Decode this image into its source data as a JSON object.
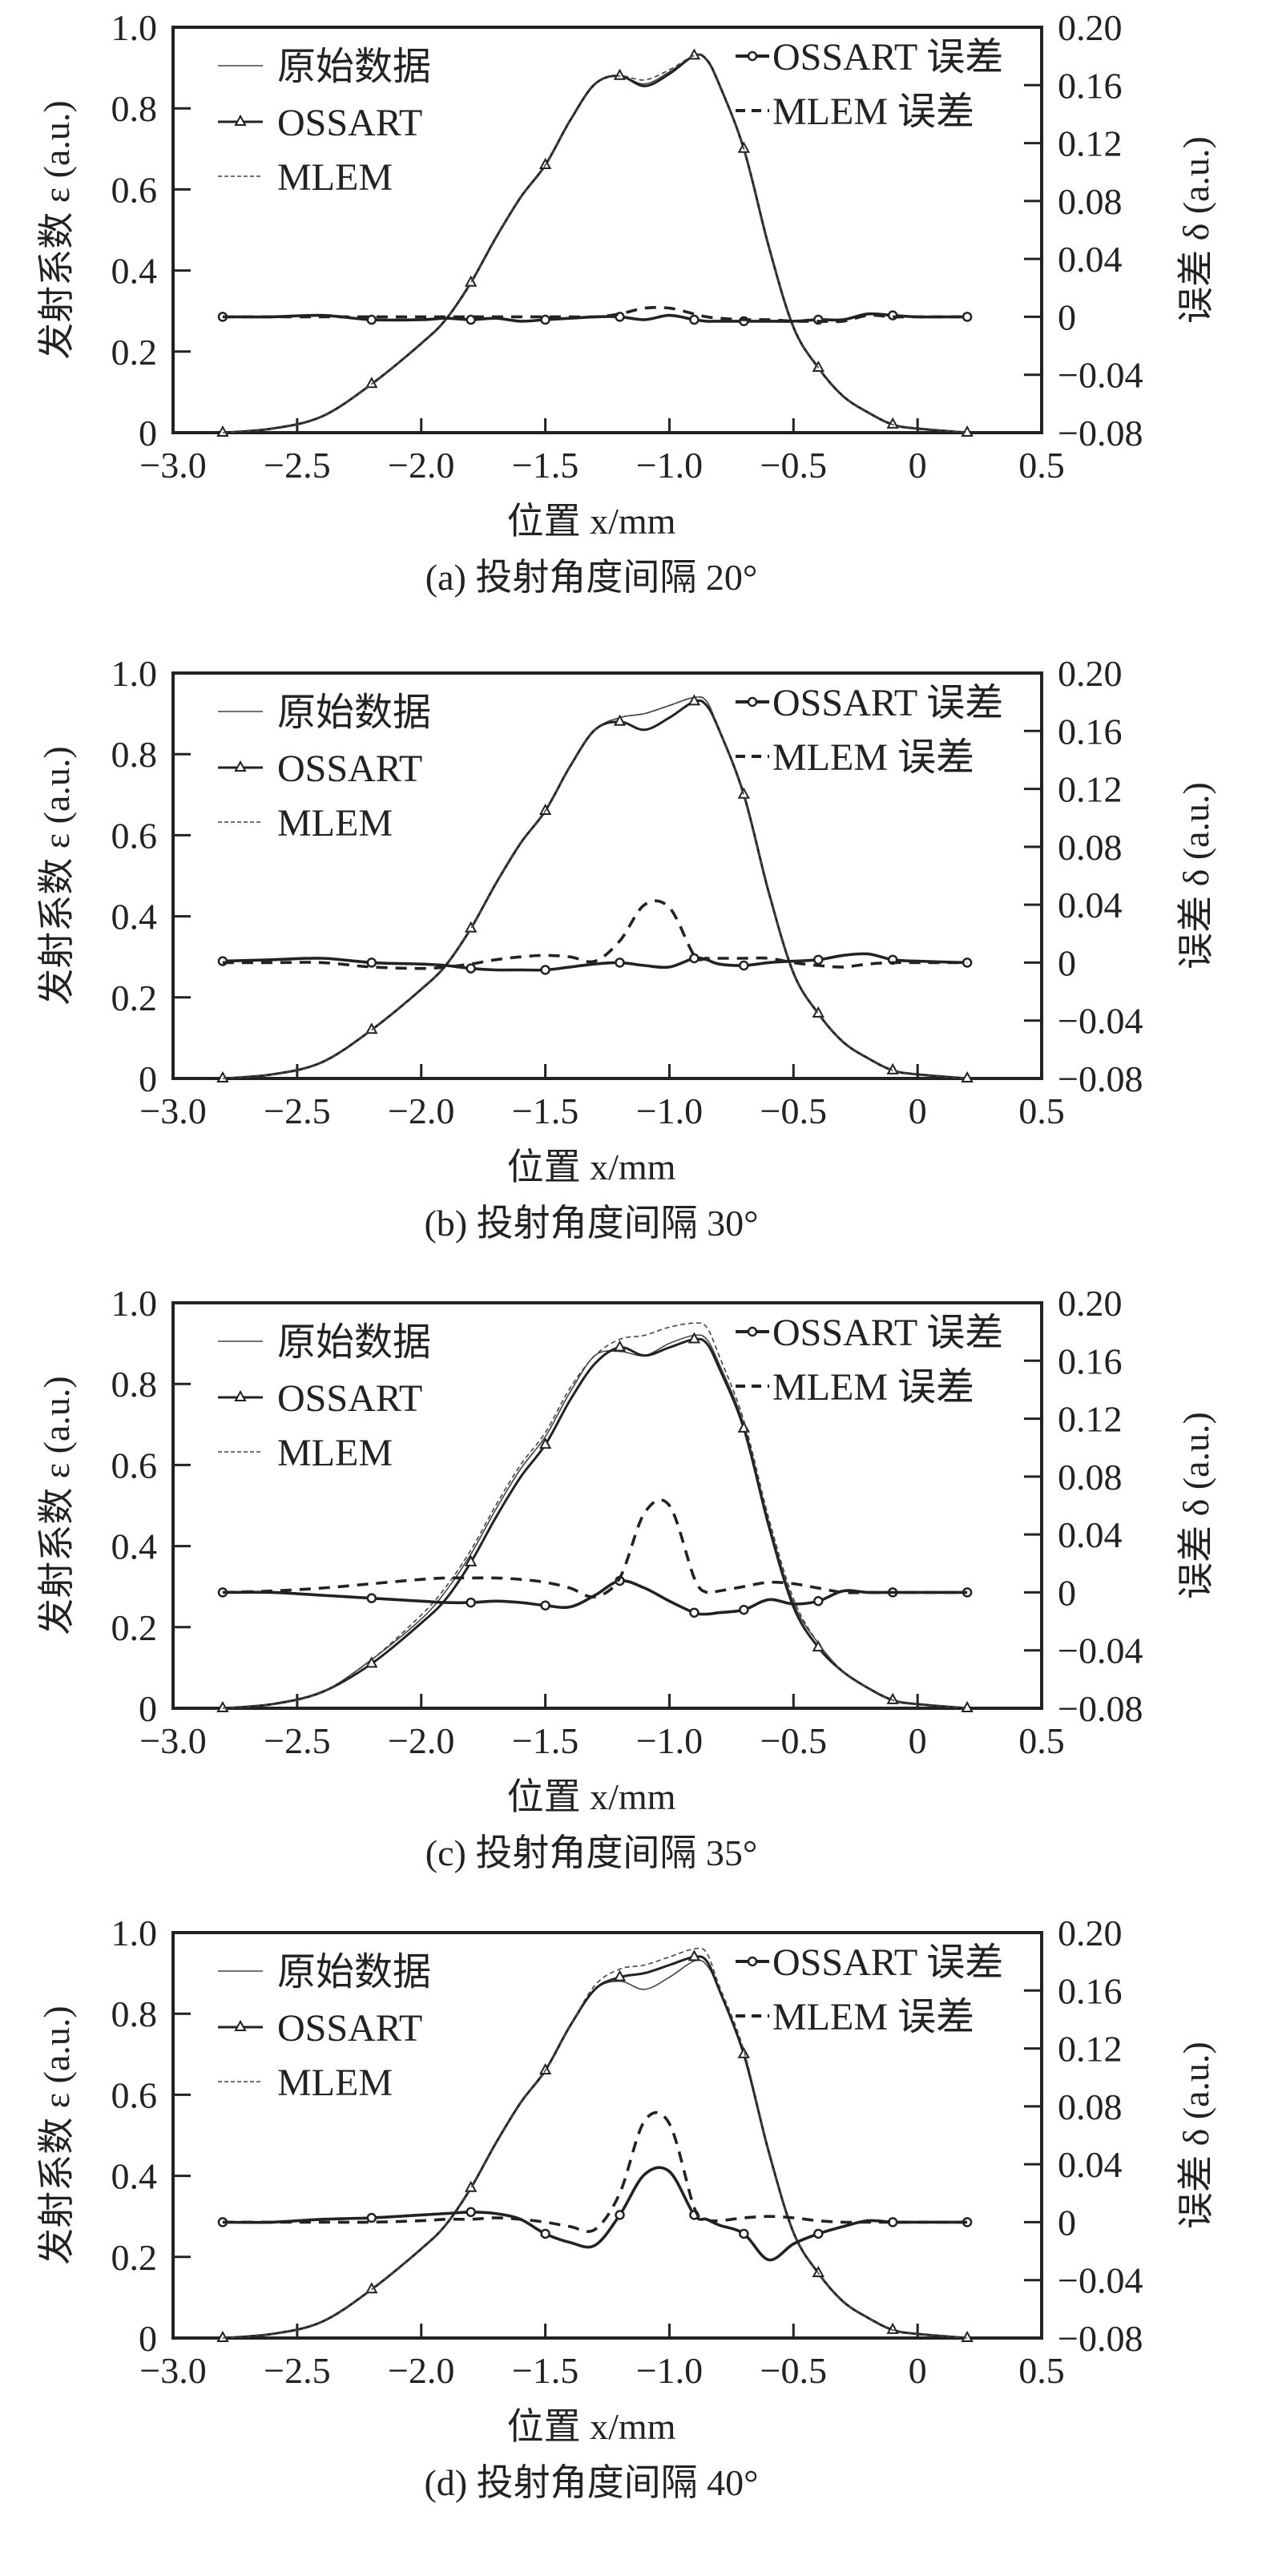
{
  "figure": {
    "left_axis_label": "发射系数 ε (a.u.)",
    "right_axis_label": "误差 δ (a.u.)",
    "x_axis_label": "位置 x/mm",
    "legend_left": [
      "原始数据",
      "OSSART",
      "MLEM"
    ],
    "legend_right": [
      "OSSART 误差",
      "MLEM 误差"
    ],
    "colors": {
      "ink": "#222222",
      "grey": "#555555"
    }
  },
  "chart_data": [
    {
      "type": "line",
      "caption": "(a) 投射角度间隔 20°",
      "xlabel": "位置 x/mm",
      "ylabel": "发射系数 ε (a.u.)",
      "y2label": "误差 δ (a.u.)",
      "xlim": [
        -3.0,
        0.5
      ],
      "ylim": [
        0,
        1.0
      ],
      "y2lim": [
        -0.08,
        0.2
      ],
      "xticks": [
        "-3.0",
        "-2.5",
        "-2.0",
        "-1.5",
        "-1.0",
        "-0.5",
        "0",
        "0.5"
      ],
      "yticks": [
        "0",
        "0.2",
        "0.4",
        "0.6",
        "0.8",
        "1.0"
      ],
      "y2ticks": [
        "-0.08",
        "-0.04",
        "0",
        "0.04",
        "0.08",
        "0.12",
        "0.16",
        "0.20"
      ],
      "legend": [
        "原始数据",
        "OSSART",
        "MLEM",
        "OSSART 误差",
        "MLEM 误差"
      ],
      "x": [
        -2.8,
        -2.6,
        -2.4,
        -2.2,
        -2.0,
        -1.9,
        -1.8,
        -1.7,
        -1.6,
        -1.5,
        -1.4,
        -1.3,
        -1.2,
        -1.1,
        -1.0,
        -0.9,
        -0.85,
        -0.8,
        -0.7,
        -0.6,
        -0.5,
        -0.4,
        -0.3,
        -0.2,
        -0.1,
        0.0,
        0.2
      ],
      "series": [
        {
          "name": "原始数据",
          "axis": "left",
          "values": [
            0.0,
            0.01,
            0.04,
            0.12,
            0.22,
            0.28,
            0.37,
            0.48,
            0.58,
            0.66,
            0.77,
            0.86,
            0.88,
            0.86,
            0.89,
            0.93,
            0.92,
            0.86,
            0.7,
            0.46,
            0.26,
            0.16,
            0.09,
            0.05,
            0.02,
            0.01,
            0.0
          ]
        },
        {
          "name": "OSSART",
          "axis": "left",
          "values": [
            0.0,
            0.01,
            0.04,
            0.12,
            0.22,
            0.28,
            0.37,
            0.48,
            0.58,
            0.66,
            0.77,
            0.86,
            0.88,
            0.855,
            0.885,
            0.93,
            0.92,
            0.86,
            0.7,
            0.46,
            0.26,
            0.16,
            0.09,
            0.05,
            0.02,
            0.01,
            0.0
          ]
        },
        {
          "name": "MLEM",
          "axis": "left",
          "values": [
            0.0,
            0.01,
            0.04,
            0.12,
            0.22,
            0.28,
            0.37,
            0.48,
            0.58,
            0.66,
            0.77,
            0.86,
            0.88,
            0.87,
            0.895,
            0.93,
            0.92,
            0.86,
            0.7,
            0.46,
            0.26,
            0.16,
            0.09,
            0.05,
            0.02,
            0.01,
            0.0
          ]
        },
        {
          "name": "OSSART 误差",
          "axis": "right",
          "values": [
            0.0,
            0.0,
            0.001,
            -0.002,
            -0.002,
            -0.001,
            -0.002,
            -0.001,
            -0.003,
            -0.002,
            -0.001,
            0.0,
            0.0,
            -0.002,
            0.001,
            -0.002,
            -0.003,
            -0.003,
            -0.003,
            -0.003,
            -0.003,
            -0.002,
            -0.002,
            0.002,
            0.001,
            0.0,
            0.0
          ]
        },
        {
          "name": "MLEM 误差",
          "axis": "right",
          "values": [
            0.0,
            0.0,
            0.0,
            0.0,
            0.0,
            0.0,
            0.0,
            0.0,
            0.0,
            0.0,
            0.0,
            0.0,
            0.002,
            0.006,
            0.006,
            0.002,
            0.0,
            -0.001,
            -0.002,
            -0.002,
            -0.003,
            -0.003,
            -0.003,
            0.001,
            0.0,
            0.0,
            0.0
          ]
        }
      ]
    },
    {
      "type": "line",
      "caption": "(b) 投射角度间隔 30°",
      "xlabel": "位置 x/mm",
      "ylabel": "发射系数 ε (a.u.)",
      "y2label": "误差 δ (a.u.)",
      "xlim": [
        -3.0,
        0.5
      ],
      "ylim": [
        0,
        1.0
      ],
      "y2lim": [
        -0.08,
        0.2
      ],
      "xticks": [
        "-3.0",
        "-2.5",
        "-2.0",
        "-1.5",
        "-1.0",
        "-0.5",
        "0",
        "0.5"
      ],
      "yticks": [
        "0",
        "0.2",
        "0.4",
        "0.6",
        "0.8",
        "1.0"
      ],
      "y2ticks": [
        "-0.08",
        "-0.04",
        "0",
        "0.04",
        "0.08",
        "0.12",
        "0.16",
        "0.20"
      ],
      "legend": [
        "原始数据",
        "OSSART",
        "MLEM",
        "OSSART 误差",
        "MLEM 误差"
      ],
      "x": [
        -2.8,
        -2.6,
        -2.4,
        -2.2,
        -2.0,
        -1.9,
        -1.8,
        -1.7,
        -1.6,
        -1.5,
        -1.4,
        -1.3,
        -1.2,
        -1.1,
        -1.0,
        -0.9,
        -0.85,
        -0.8,
        -0.7,
        -0.6,
        -0.5,
        -0.4,
        -0.3,
        -0.2,
        -0.1,
        0.0,
        0.2
      ],
      "series": [
        {
          "name": "原始数据",
          "axis": "left",
          "values": [
            0.0,
            0.01,
            0.04,
            0.12,
            0.22,
            0.28,
            0.37,
            0.48,
            0.58,
            0.66,
            0.77,
            0.86,
            0.89,
            0.9,
            0.92,
            0.94,
            0.93,
            0.86,
            0.7,
            0.46,
            0.26,
            0.16,
            0.09,
            0.05,
            0.02,
            0.01,
            0.0
          ]
        },
        {
          "name": "OSSART",
          "axis": "left",
          "values": [
            0.0,
            0.01,
            0.04,
            0.12,
            0.22,
            0.28,
            0.37,
            0.48,
            0.58,
            0.66,
            0.77,
            0.86,
            0.88,
            0.86,
            0.89,
            0.93,
            0.92,
            0.86,
            0.7,
            0.46,
            0.26,
            0.16,
            0.09,
            0.05,
            0.02,
            0.01,
            0.0
          ]
        },
        {
          "name": "MLEM",
          "axis": "left",
          "values": [
            0.0,
            0.01,
            0.04,
            0.12,
            0.22,
            0.28,
            0.37,
            0.48,
            0.58,
            0.66,
            0.77,
            0.86,
            0.89,
            0.9,
            0.92,
            0.94,
            0.93,
            0.86,
            0.7,
            0.46,
            0.26,
            0.16,
            0.09,
            0.05,
            0.02,
            0.01,
            0.0
          ]
        },
        {
          "name": "OSSART 误差",
          "axis": "right",
          "values": [
            0.001,
            0.002,
            0.003,
            0.0,
            -0.001,
            -0.002,
            -0.004,
            -0.005,
            -0.005,
            -0.005,
            -0.003,
            -0.001,
            0.0,
            -0.002,
            -0.003,
            0.003,
            0.002,
            -0.001,
            -0.002,
            0.0,
            0.001,
            0.002,
            0.005,
            0.006,
            0.002,
            0.001,
            0.0
          ]
        },
        {
          "name": "MLEM 误差",
          "axis": "right",
          "values": [
            0.0,
            0.0,
            0.0,
            -0.003,
            -0.004,
            -0.003,
            -0.001,
            0.002,
            0.004,
            0.005,
            0.004,
            0.001,
            0.015,
            0.04,
            0.038,
            0.005,
            0.003,
            0.003,
            0.003,
            0.003,
            0.0,
            -0.002,
            -0.003,
            -0.001,
            0.0,
            0.0,
            0.0
          ]
        }
      ]
    },
    {
      "type": "line",
      "caption": "(c) 投射角度间隔 35°",
      "xlabel": "位置 x/mm",
      "ylabel": "发射系数 ε (a.u.)",
      "y2label": "误差 δ (a.u.)",
      "xlim": [
        -3.0,
        0.5
      ],
      "ylim": [
        0,
        1.0
      ],
      "y2lim": [
        -0.08,
        0.2
      ],
      "xticks": [
        "-3.0",
        "-2.5",
        "-2.0",
        "-1.5",
        "-1.0",
        "-0.5",
        "0",
        "0.5"
      ],
      "yticks": [
        "0",
        "0.2",
        "0.4",
        "0.6",
        "0.8",
        "1.0"
      ],
      "y2ticks": [
        "-0.08",
        "-0.04",
        "0",
        "0.04",
        "0.08",
        "0.12",
        "0.16",
        "0.20"
      ],
      "legend": [
        "原始数据",
        "OSSART",
        "MLEM",
        "OSSART 误差",
        "MLEM 误差"
      ],
      "x": [
        -2.8,
        -2.6,
        -2.4,
        -2.2,
        -2.0,
        -1.9,
        -1.8,
        -1.7,
        -1.6,
        -1.5,
        -1.4,
        -1.3,
        -1.2,
        -1.1,
        -1.0,
        -0.9,
        -0.85,
        -0.8,
        -0.7,
        -0.6,
        -0.5,
        -0.4,
        -0.3,
        -0.2,
        -0.1,
        0.0,
        0.2
      ],
      "series": [
        {
          "name": "原始数据",
          "axis": "left",
          "values": [
            0.0,
            0.01,
            0.04,
            0.12,
            0.22,
            0.29,
            0.38,
            0.49,
            0.59,
            0.67,
            0.78,
            0.87,
            0.88,
            0.87,
            0.9,
            0.92,
            0.91,
            0.85,
            0.7,
            0.46,
            0.26,
            0.16,
            0.09,
            0.05,
            0.02,
            0.01,
            0.0
          ]
        },
        {
          "name": "OSSART",
          "axis": "left",
          "values": [
            0.0,
            0.01,
            0.04,
            0.11,
            0.21,
            0.27,
            0.36,
            0.47,
            0.57,
            0.65,
            0.76,
            0.85,
            0.89,
            0.87,
            0.89,
            0.91,
            0.9,
            0.84,
            0.69,
            0.45,
            0.25,
            0.15,
            0.09,
            0.05,
            0.02,
            0.01,
            0.0
          ]
        },
        {
          "name": "MLEM",
          "axis": "left",
          "values": [
            0.0,
            0.01,
            0.04,
            0.12,
            0.23,
            0.3,
            0.39,
            0.5,
            0.6,
            0.68,
            0.79,
            0.87,
            0.91,
            0.92,
            0.94,
            0.95,
            0.94,
            0.87,
            0.71,
            0.47,
            0.27,
            0.16,
            0.09,
            0.05,
            0.02,
            0.01,
            0.0
          ]
        },
        {
          "name": "OSSART 误差",
          "axis": "right",
          "values": [
            0.0,
            0.0,
            -0.002,
            -0.004,
            -0.006,
            -0.007,
            -0.007,
            -0.006,
            -0.007,
            -0.009,
            -0.01,
            -0.002,
            0.008,
            0.003,
            -0.006,
            -0.014,
            -0.015,
            -0.014,
            -0.012,
            -0.005,
            -0.008,
            -0.006,
            0.001,
            0.0,
            0.0,
            0.0,
            0.0
          ]
        },
        {
          "name": "MLEM 误差",
          "axis": "right",
          "values": [
            0.0,
            0.001,
            0.003,
            0.006,
            0.009,
            0.01,
            0.01,
            0.01,
            0.009,
            0.007,
            0.003,
            -0.003,
            0.01,
            0.055,
            0.06,
            0.01,
            0.0,
            0.001,
            0.004,
            0.007,
            0.006,
            0.003,
            0.0,
            0.0,
            0.0,
            0.0,
            0.0
          ]
        }
      ]
    },
    {
      "type": "line",
      "caption": "(d) 投射角度间隔 40°",
      "xlabel": "位置 x/mm",
      "ylabel": "发射系数 ε (a.u.)",
      "y2label": "误差 δ (a.u.)",
      "xlim": [
        -3.0,
        0.5
      ],
      "ylim": [
        0,
        1.0
      ],
      "y2lim": [
        -0.08,
        0.2
      ],
      "xticks": [
        "-3.0",
        "-2.5",
        "-2.0",
        "-1.5",
        "-1.0",
        "-0.5",
        "0",
        "0.5"
      ],
      "yticks": [
        "0",
        "0.2",
        "0.4",
        "0.6",
        "0.8",
        "1.0"
      ],
      "y2ticks": [
        "-0.08",
        "-0.04",
        "0",
        "0.04",
        "0.08",
        "0.12",
        "0.16",
        "0.20"
      ],
      "legend": [
        "原始数据",
        "OSSART",
        "MLEM",
        "OSSART 误差",
        "MLEM 误差"
      ],
      "x": [
        -2.8,
        -2.6,
        -2.4,
        -2.2,
        -2.0,
        -1.9,
        -1.8,
        -1.7,
        -1.6,
        -1.5,
        -1.4,
        -1.3,
        -1.2,
        -1.1,
        -1.0,
        -0.9,
        -0.85,
        -0.8,
        -0.7,
        -0.6,
        -0.5,
        -0.4,
        -0.3,
        -0.2,
        -0.1,
        0.0,
        0.2
      ],
      "series": [
        {
          "name": "原始数据",
          "axis": "left",
          "values": [
            0.0,
            0.01,
            0.04,
            0.12,
            0.22,
            0.28,
            0.37,
            0.48,
            0.58,
            0.66,
            0.77,
            0.86,
            0.88,
            0.86,
            0.89,
            0.93,
            0.92,
            0.86,
            0.7,
            0.46,
            0.26,
            0.16,
            0.09,
            0.05,
            0.02,
            0.01,
            0.0
          ]
        },
        {
          "name": "OSSART",
          "axis": "left",
          "values": [
            0.0,
            0.01,
            0.04,
            0.12,
            0.22,
            0.28,
            0.37,
            0.48,
            0.58,
            0.66,
            0.77,
            0.86,
            0.89,
            0.9,
            0.92,
            0.94,
            0.93,
            0.86,
            0.7,
            0.46,
            0.26,
            0.16,
            0.09,
            0.05,
            0.02,
            0.01,
            0.0
          ]
        },
        {
          "name": "MLEM",
          "axis": "left",
          "values": [
            0.0,
            0.01,
            0.04,
            0.12,
            0.22,
            0.28,
            0.37,
            0.48,
            0.58,
            0.66,
            0.77,
            0.87,
            0.91,
            0.92,
            0.94,
            0.96,
            0.95,
            0.87,
            0.71,
            0.46,
            0.26,
            0.16,
            0.09,
            0.05,
            0.02,
            0.01,
            0.0
          ]
        },
        {
          "name": "OSSART 误差",
          "axis": "right",
          "values": [
            0.0,
            0.0,
            0.002,
            0.003,
            0.005,
            0.006,
            0.007,
            0.006,
            0.002,
            -0.008,
            -0.014,
            -0.016,
            0.005,
            0.033,
            0.035,
            0.005,
            0.002,
            -0.002,
            -0.008,
            -0.026,
            -0.015,
            -0.008,
            -0.003,
            0.001,
            0.0,
            0.0,
            0.0
          ]
        },
        {
          "name": "MLEM 误差",
          "axis": "right",
          "values": [
            0.0,
            0.0,
            0.0,
            0.0,
            0.001,
            0.002,
            0.002,
            0.003,
            0.002,
            0.0,
            -0.003,
            -0.005,
            0.02,
            0.07,
            0.068,
            0.01,
            0.002,
            0.001,
            0.003,
            0.004,
            0.003,
            0.001,
            0.0,
            0.0,
            0.0,
            0.0,
            0.0
          ]
        }
      ]
    }
  ]
}
